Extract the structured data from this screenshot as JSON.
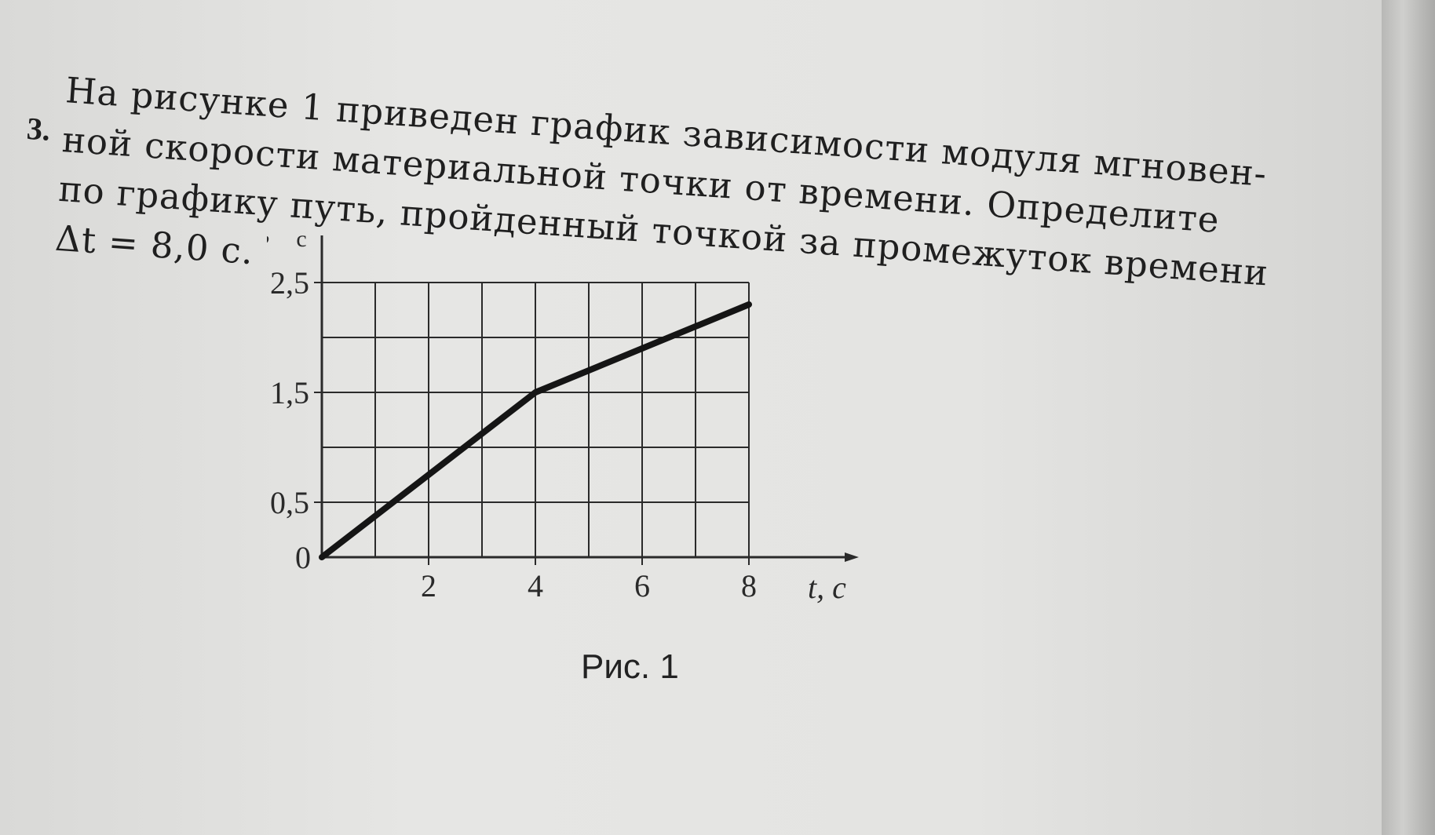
{
  "problem": {
    "number": "3.",
    "lines": [
      "На рисунке 1 приведен график зависимости модуля мгновен-",
      "ной скорости материальной точки от времени. Определите",
      "по графику путь, пройденный точкой за промежуток времени",
      "Δt = 8,0 с."
    ]
  },
  "figure": {
    "caption": "Рис. 1"
  },
  "chart_data": {
    "type": "line",
    "title": "",
    "xlabel": "t, с",
    "ylabel": "v, м/с",
    "ylabel_quantity": "v,",
    "ylabel_unit_numerator": "м",
    "ylabel_unit_denominator": "с",
    "origin_label": "0",
    "x_ticks": [
      "2",
      "4",
      "6",
      "8"
    ],
    "x_tick_values": [
      2,
      4,
      6,
      8
    ],
    "y_ticks": [
      "0,5",
      "1,5",
      "2,5"
    ],
    "y_tick_values": [
      0.5,
      1.5,
      2.5
    ],
    "xlim": [
      0,
      8
    ],
    "ylim": [
      0,
      2.5
    ],
    "grid": true,
    "grid_x_step": 1,
    "grid_y_step": 0.5,
    "series": [
      {
        "x": [
          0,
          4,
          8
        ],
        "y": [
          0,
          1.5,
          2.3
        ]
      }
    ]
  }
}
